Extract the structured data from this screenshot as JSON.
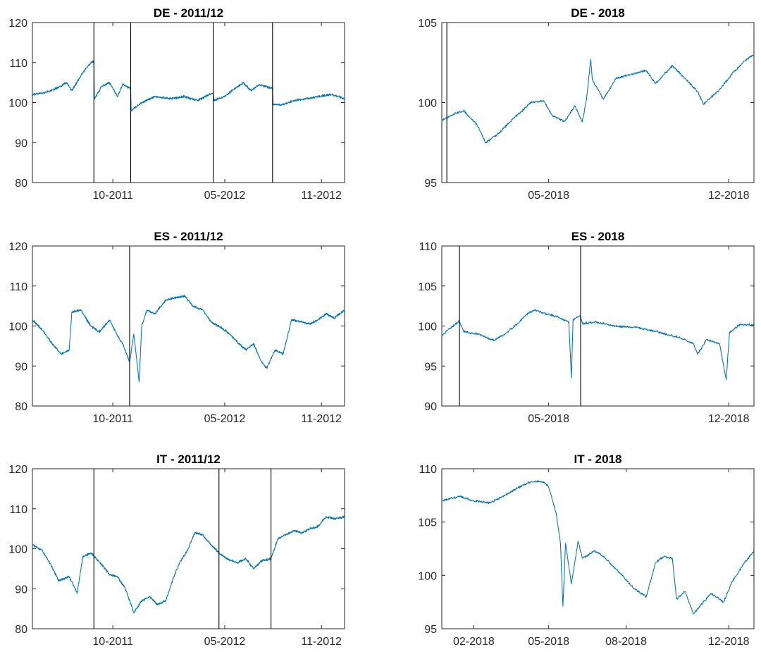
{
  "colors": {
    "series": "#0072bd",
    "vline": "#000000",
    "axis": "#262626"
  },
  "chart_data": [
    {
      "type": "line",
      "title": "DE - 2011/12",
      "xticks": [
        {
          "x": "2011-10-01",
          "label": "10-2011"
        },
        {
          "x": "2012-05-01",
          "label": "05-2012"
        },
        {
          "x": "2012-11-01",
          "label": "11-2012"
        }
      ],
      "xlim": [
        "2011-05-01",
        "2012-12-15"
      ],
      "ylim": [
        80,
        120
      ],
      "yticks": [
        80,
        90,
        100,
        110,
        120
      ],
      "vlines": [
        "2011-08-26",
        "2011-11-04",
        "2012-04-09",
        "2012-07-31"
      ],
      "series": [
        {
          "points": [
            [
              "2011-05-01",
              102
            ],
            [
              "2011-05-25",
              102.5
            ],
            [
              "2011-06-15",
              103.5
            ],
            [
              "2011-07-05",
              105
            ],
            [
              "2011-07-15",
              103
            ],
            [
              "2011-08-05",
              107.5
            ],
            [
              "2011-08-20",
              110
            ],
            [
              "2011-08-26",
              110.3
            ],
            [
              "2011-08-27",
              101
            ],
            [
              "2011-09-10",
              104
            ],
            [
              "2011-09-25",
              105
            ],
            [
              "2011-10-10",
              101.5
            ],
            [
              "2011-10-20",
              104.5
            ],
            [
              "2011-11-04",
              103.5
            ],
            [
              "2011-11-05",
              98
            ],
            [
              "2011-11-25",
              100
            ],
            [
              "2011-12-20",
              101.5
            ],
            [
              "2012-01-20",
              101
            ],
            [
              "2012-02-15",
              101.5
            ],
            [
              "2012-03-10",
              100.5
            ],
            [
              "2012-04-09",
              102.5
            ],
            [
              "2012-04-10",
              100.5
            ],
            [
              "2012-05-01",
              101.5
            ],
            [
              "2012-05-20",
              103.5
            ],
            [
              "2012-06-05",
              105
            ],
            [
              "2012-06-20",
              103
            ],
            [
              "2012-07-05",
              104.5
            ],
            [
              "2012-07-31",
              103.5
            ],
            [
              "2012-08-01",
              99.5
            ],
            [
              "2012-08-20",
              99.5
            ],
            [
              "2012-09-10",
              100.5
            ],
            [
              "2012-10-05",
              101
            ],
            [
              "2012-10-25",
              101.5
            ],
            [
              "2012-11-20",
              102
            ],
            [
              "2012-12-15",
              101
            ]
          ]
        }
      ]
    },
    {
      "type": "line",
      "title": "DE - 2018",
      "xticks": [
        {
          "x": "2018-05-01",
          "label": "05-2018"
        },
        {
          "x": "2018-12-01",
          "label": "12-2018"
        }
      ],
      "xlim": [
        "2017-12-25",
        "2018-12-31"
      ],
      "ylim": [
        95,
        105
      ],
      "yticks": [
        95,
        100,
        105
      ],
      "vlines": [
        "2017-12-31"
      ],
      "series": [
        {
          "points": [
            [
              "2017-12-25",
              98.9
            ],
            [
              "2018-01-05",
              99.2
            ],
            [
              "2018-01-20",
              99.5
            ],
            [
              "2018-02-05",
              98.6
            ],
            [
              "2018-02-15",
              97.5
            ],
            [
              "2018-03-01",
              98
            ],
            [
              "2018-03-20",
              99
            ],
            [
              "2018-04-10",
              100
            ],
            [
              "2018-04-25",
              100.1
            ],
            [
              "2018-05-05",
              99.2
            ],
            [
              "2018-05-20",
              98.8
            ],
            [
              "2018-06-01",
              99.8
            ],
            [
              "2018-06-10",
              98.8
            ],
            [
              "2018-06-15",
              100.2
            ],
            [
              "2018-06-20",
              102.7
            ],
            [
              "2018-06-22",
              101.4
            ],
            [
              "2018-07-05",
              100.2
            ],
            [
              "2018-07-20",
              101.5
            ],
            [
              "2018-08-10",
              101.8
            ],
            [
              "2018-08-25",
              102
            ],
            [
              "2018-09-05",
              101.2
            ],
            [
              "2018-09-25",
              102.3
            ],
            [
              "2018-10-10",
              101.5
            ],
            [
              "2018-10-25",
              100.7
            ],
            [
              "2018-11-01",
              99.9
            ],
            [
              "2018-11-20",
              100.8
            ],
            [
              "2018-12-05",
              101.8
            ],
            [
              "2018-12-20",
              102.6
            ],
            [
              "2018-12-31",
              103
            ]
          ]
        }
      ]
    },
    {
      "type": "line",
      "title": "ES - 2011/12",
      "xticks": [
        {
          "x": "2011-10-01",
          "label": "10-2011"
        },
        {
          "x": "2012-05-01",
          "label": "05-2012"
        },
        {
          "x": "2012-11-01",
          "label": "11-2012"
        }
      ],
      "xlim": [
        "2011-05-01",
        "2012-12-15"
      ],
      "ylim": [
        80,
        120
      ],
      "yticks": [
        80,
        90,
        100,
        110,
        120
      ],
      "vlines": [
        "2011-11-02"
      ],
      "series": [
        {
          "points": [
            [
              "2011-05-01",
              101.5
            ],
            [
              "2011-05-20",
              99
            ],
            [
              "2011-06-05",
              96
            ],
            [
              "2011-06-25",
              93
            ],
            [
              "2011-07-10",
              94
            ],
            [
              "2011-07-15",
              103.5
            ],
            [
              "2011-08-01",
              104
            ],
            [
              "2011-08-20",
              100
            ],
            [
              "2011-09-05",
              98.5
            ],
            [
              "2011-09-25",
              101.5
            ],
            [
              "2011-10-10",
              97.5
            ],
            [
              "2011-10-20",
              95.5
            ],
            [
              "2011-11-02",
              91
            ],
            [
              "2011-11-10",
              98
            ],
            [
              "2011-11-20",
              86
            ],
            [
              "2011-11-25",
              100
            ],
            [
              "2011-12-05",
              104
            ],
            [
              "2011-12-20",
              103
            ],
            [
              "2012-01-10",
              106.5
            ],
            [
              "2012-01-25",
              107
            ],
            [
              "2012-02-15",
              107.5
            ],
            [
              "2012-03-01",
              105
            ],
            [
              "2012-03-20",
              104
            ],
            [
              "2012-04-05",
              101
            ],
            [
              "2012-04-25",
              99.5
            ],
            [
              "2012-05-10",
              98
            ],
            [
              "2012-05-25",
              96
            ],
            [
              "2012-06-10",
              94
            ],
            [
              "2012-06-25",
              95.5
            ],
            [
              "2012-07-10",
              91
            ],
            [
              "2012-07-20",
              89.5
            ],
            [
              "2012-08-05",
              94
            ],
            [
              "2012-08-20",
              93
            ],
            [
              "2012-09-05",
              101.5
            ],
            [
              "2012-09-25",
              101
            ],
            [
              "2012-10-10",
              100.5
            ],
            [
              "2012-10-25",
              101.5
            ],
            [
              "2012-11-10",
              103
            ],
            [
              "2012-11-25",
              102
            ],
            [
              "2012-12-15",
              104
            ]
          ]
        }
      ]
    },
    {
      "type": "line",
      "title": "ES - 2018",
      "xticks": [
        {
          "x": "2018-05-01",
          "label": "05-2018"
        },
        {
          "x": "2018-12-01",
          "label": "12-2018"
        }
      ],
      "xlim": [
        "2017-12-25",
        "2018-12-31"
      ],
      "ylim": [
        90,
        110
      ],
      "yticks": [
        90,
        95,
        100,
        105,
        110
      ],
      "vlines": [
        "2018-01-15",
        "2018-06-08"
      ],
      "series": [
        {
          "points": [
            [
              "2017-12-25",
              98.8
            ],
            [
              "2018-01-05",
              99.8
            ],
            [
              "2018-01-15",
              100.6
            ],
            [
              "2018-01-20",
              99.3
            ],
            [
              "2018-02-05",
              99
            ],
            [
              "2018-02-25",
              98.2
            ],
            [
              "2018-03-10",
              99
            ],
            [
              "2018-03-25",
              100.3
            ],
            [
              "2018-04-05",
              101.5
            ],
            [
              "2018-04-15",
              102
            ],
            [
              "2018-04-25",
              101.6
            ],
            [
              "2018-05-10",
              101.2
            ],
            [
              "2018-05-25",
              100.5
            ],
            [
              "2018-05-28",
              93.5
            ],
            [
              "2018-05-30",
              100.8
            ],
            [
              "2018-06-08",
              101.3
            ],
            [
              "2018-06-10",
              100.3
            ],
            [
              "2018-06-25",
              100.5
            ],
            [
              "2018-07-20",
              100
            ],
            [
              "2018-08-15",
              99.8
            ],
            [
              "2018-09-10",
              99.2
            ],
            [
              "2018-10-05",
              98.5
            ],
            [
              "2018-10-20",
              97.8
            ],
            [
              "2018-10-25",
              96.5
            ],
            [
              "2018-11-05",
              98.3
            ],
            [
              "2018-11-20",
              97.8
            ],
            [
              "2018-11-28",
              93.3
            ],
            [
              "2018-12-02",
              99.2
            ],
            [
              "2018-12-15",
              100.2
            ],
            [
              "2018-12-31",
              100.1
            ]
          ]
        }
      ]
    },
    {
      "type": "line",
      "title": "IT - 2011/12",
      "xticks": [
        {
          "x": "2011-10-01",
          "label": "10-2011"
        },
        {
          "x": "2012-05-01",
          "label": "05-2012"
        },
        {
          "x": "2012-11-01",
          "label": "11-2012"
        }
      ],
      "xlim": [
        "2011-05-01",
        "2012-12-15"
      ],
      "ylim": [
        80,
        120
      ],
      "yticks": [
        80,
        90,
        100,
        110,
        120
      ],
      "vlines": [
        "2011-08-26",
        "2012-04-20",
        "2012-07-28"
      ],
      "series": [
        {
          "points": [
            [
              "2011-05-01",
              101
            ],
            [
              "2011-05-20",
              99.5
            ],
            [
              "2011-06-05",
              96
            ],
            [
              "2011-06-20",
              92
            ],
            [
              "2011-07-10",
              93
            ],
            [
              "2011-07-25",
              89
            ],
            [
              "2011-08-05",
              98
            ],
            [
              "2011-08-20",
              99
            ],
            [
              "2011-09-10",
              96
            ],
            [
              "2011-09-25",
              93.5
            ],
            [
              "2011-10-10",
              93
            ],
            [
              "2011-10-25",
              90
            ],
            [
              "2011-11-10",
              84
            ],
            [
              "2011-11-25",
              87
            ],
            [
              "2011-12-10",
              88
            ],
            [
              "2011-12-25",
              86
            ],
            [
              "2012-01-10",
              87
            ],
            [
              "2012-01-25",
              93
            ],
            [
              "2012-02-05",
              96.5
            ],
            [
              "2012-02-20",
              99.5
            ],
            [
              "2012-03-05",
              104
            ],
            [
              "2012-03-20",
              103.5
            ],
            [
              "2012-04-05",
              101
            ],
            [
              "2012-04-20",
              99
            ],
            [
              "2012-05-05",
              97.5
            ],
            [
              "2012-05-25",
              96.5
            ],
            [
              "2012-06-10",
              97.5
            ],
            [
              "2012-06-25",
              95
            ],
            [
              "2012-07-10",
              97
            ],
            [
              "2012-07-28",
              97.5
            ],
            [
              "2012-08-10",
              102.5
            ],
            [
              "2012-08-25",
              103.5
            ],
            [
              "2012-09-10",
              104.5
            ],
            [
              "2012-09-25",
              104
            ],
            [
              "2012-10-10",
              105
            ],
            [
              "2012-10-25",
              105.5
            ],
            [
              "2012-11-10",
              108
            ],
            [
              "2012-11-25",
              107.5
            ],
            [
              "2012-12-15",
              108
            ]
          ]
        }
      ]
    },
    {
      "type": "line",
      "title": "IT - 2018",
      "xticks": [
        {
          "x": "2018-02-01",
          "label": "02-2018"
        },
        {
          "x": "2018-05-01",
          "label": "05-2018"
        },
        {
          "x": "2018-08-01",
          "label": "08-2018"
        },
        {
          "x": "2018-12-01",
          "label": "12-2018"
        }
      ],
      "xlim": [
        "2017-12-25",
        "2018-12-31"
      ],
      "ylim": [
        95,
        110
      ],
      "yticks": [
        95,
        100,
        105,
        110
      ],
      "vlines": [],
      "series": [
        {
          "points": [
            [
              "2017-12-25",
              107
            ],
            [
              "2018-01-15",
              107.4
            ],
            [
              "2018-02-01",
              107
            ],
            [
              "2018-02-20",
              106.8
            ],
            [
              "2018-03-10",
              107.5
            ],
            [
              "2018-03-25",
              108.2
            ],
            [
              "2018-04-10",
              108.8
            ],
            [
              "2018-04-25",
              108.8
            ],
            [
              "2018-05-01",
              108.3
            ],
            [
              "2018-05-10",
              105.8
            ],
            [
              "2018-05-15",
              103
            ],
            [
              "2018-05-18",
              97.1
            ],
            [
              "2018-05-21",
              103
            ],
            [
              "2018-05-28",
              99.2
            ],
            [
              "2018-06-05",
              103.2
            ],
            [
              "2018-06-10",
              101.6
            ],
            [
              "2018-06-25",
              102.3
            ],
            [
              "2018-07-05",
              101.8
            ],
            [
              "2018-07-25",
              100.2
            ],
            [
              "2018-08-10",
              98.8
            ],
            [
              "2018-08-25",
              98
            ],
            [
              "2018-09-05",
              101.2
            ],
            [
              "2018-09-15",
              101.8
            ],
            [
              "2018-09-25",
              101.6
            ],
            [
              "2018-09-30",
              97.8
            ],
            [
              "2018-10-10",
              98.5
            ],
            [
              "2018-10-20",
              96.4
            ],
            [
              "2018-11-01",
              97.5
            ],
            [
              "2018-11-10",
              98.3
            ],
            [
              "2018-11-25",
              97.5
            ],
            [
              "2018-12-05",
              99.4
            ],
            [
              "2018-12-20",
              101.2
            ],
            [
              "2018-12-31",
              102.3
            ]
          ]
        }
      ]
    }
  ]
}
